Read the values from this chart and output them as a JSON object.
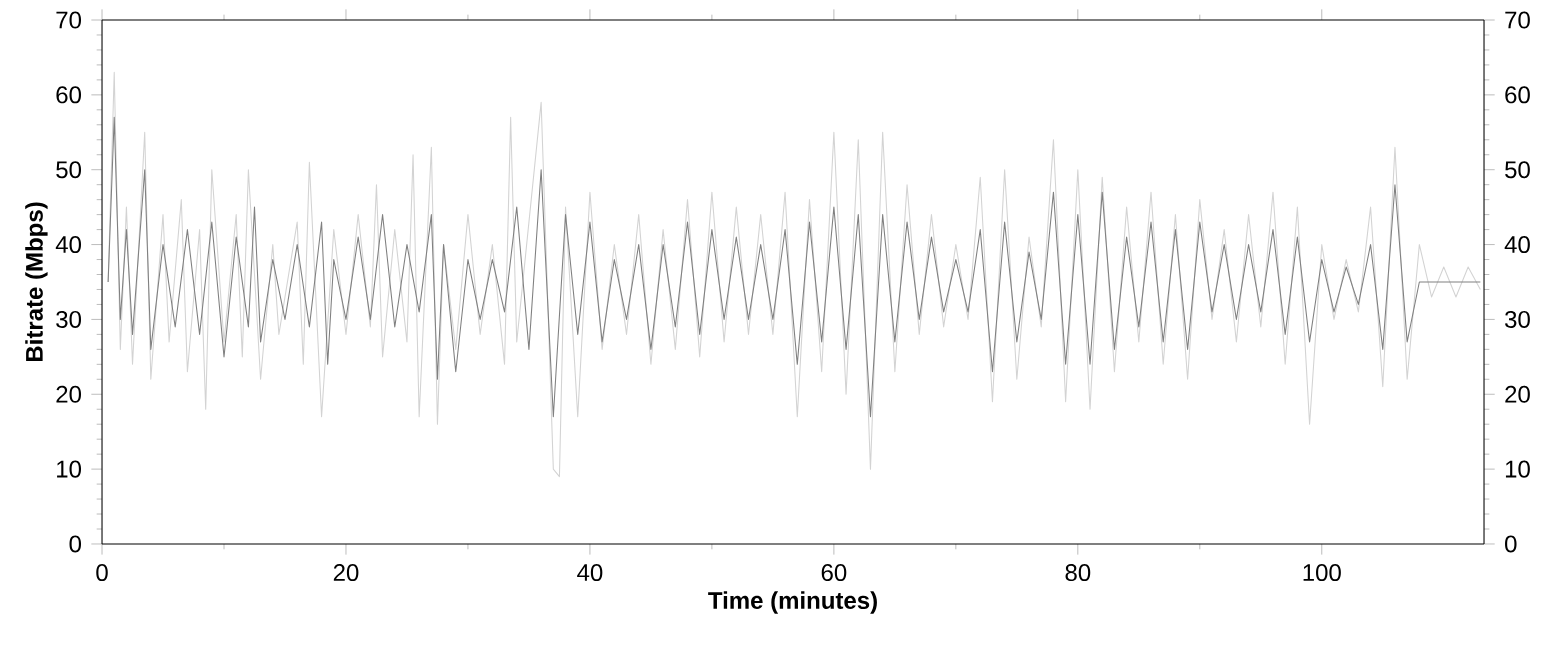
{
  "chart_data": {
    "type": "line",
    "xlabel": "Time (minutes)",
    "ylabel": "Bitrate (Mbps)",
    "xlim": [
      0,
      113.3
    ],
    "xticks": [
      0,
      20,
      40,
      60,
      80,
      100
    ],
    "ylim": [
      0,
      70
    ],
    "yticks": [
      0,
      10,
      20,
      30,
      40,
      50,
      60,
      70
    ],
    "y2lim": [
      0,
      70
    ],
    "y2ticks": [
      0,
      10,
      20,
      30,
      40,
      50,
      60,
      70
    ],
    "grid": false,
    "marker": "none",
    "line_style": "solid",
    "series": [
      {
        "color": "#d3d3d3",
        "x": [
          0.5,
          1,
          1.5,
          2,
          2.5,
          3.5,
          4,
          5,
          5.5,
          6.5,
          7,
          8,
          8.5,
          9,
          10,
          11,
          11.5,
          12,
          13,
          14,
          14.5,
          16,
          16.5,
          17,
          18,
          19,
          20,
          21,
          22,
          22.5,
          23,
          24,
          25,
          25.5,
          26,
          27,
          27.5,
          28,
          29,
          30,
          31,
          32,
          33,
          33.5,
          34,
          36,
          37,
          37.5,
          38,
          39,
          40,
          41,
          42,
          43,
          44,
          45,
          46,
          47,
          48,
          49,
          50,
          51,
          52,
          53,
          54,
          55,
          56,
          57,
          58,
          59,
          60,
          61,
          62,
          63,
          64,
          65,
          66,
          67,
          68,
          69,
          70,
          71,
          72,
          73,
          74,
          75,
          76,
          77,
          78,
          79,
          80,
          81,
          82,
          83,
          84,
          85,
          86,
          87,
          88,
          89,
          90,
          91,
          92,
          93,
          94,
          95,
          96,
          97,
          98,
          99,
          100,
          101,
          102,
          103,
          104,
          105,
          106,
          107,
          108,
          109,
          110,
          111,
          112,
          113
        ],
        "values": [
          35,
          63,
          26,
          45,
          24,
          55,
          22,
          44,
          27,
          46,
          23,
          42,
          18,
          50,
          27,
          44,
          25,
          50,
          22,
          40,
          28,
          43,
          24,
          51,
          17,
          42,
          28,
          44,
          29,
          48,
          25,
          42,
          27,
          52,
          17,
          53,
          16,
          40,
          26,
          44,
          28,
          40,
          24,
          57,
          27,
          59,
          10,
          9,
          45,
          17,
          47,
          26,
          40,
          28,
          44,
          24,
          42,
          26,
          46,
          25,
          47,
          27,
          45,
          28,
          44,
          28,
          47,
          17,
          46,
          23,
          55,
          20,
          54,
          10,
          55,
          23,
          48,
          28,
          44,
          29,
          40,
          30,
          49,
          19,
          50,
          22,
          41,
          29,
          54,
          19,
          50,
          18,
          49,
          23,
          45,
          27,
          47,
          24,
          44,
          22,
          46,
          30,
          42,
          27,
          44,
          29,
          47,
          24,
          45,
          16,
          40,
          30,
          38,
          31,
          45,
          21,
          53,
          22,
          40,
          33,
          37,
          33,
          37,
          34
        ]
      },
      {
        "color": "#808080",
        "x": [
          0.5,
          1,
          1.5,
          2,
          2.5,
          3.5,
          4,
          5,
          6,
          7,
          8,
          9,
          10,
          11,
          12,
          12.5,
          13,
          14,
          15,
          16,
          17,
          18,
          18.5,
          19,
          20,
          21,
          22,
          23,
          24,
          25,
          26,
          27,
          27.5,
          28,
          29,
          30,
          31,
          32,
          33,
          34,
          35,
          36,
          37,
          38,
          39,
          40,
          41,
          42,
          43,
          44,
          45,
          46,
          47,
          48,
          49,
          50,
          51,
          52,
          53,
          54,
          55,
          56,
          57,
          58,
          59,
          60,
          61,
          62,
          63,
          64,
          65,
          66,
          67,
          68,
          69,
          70,
          71,
          72,
          73,
          74,
          75,
          76,
          77,
          78,
          79,
          80,
          81,
          82,
          83,
          84,
          85,
          86,
          87,
          88,
          89,
          90,
          91,
          92,
          93,
          94,
          95,
          96,
          97,
          98,
          99,
          100,
          101,
          102,
          103,
          104,
          105,
          106,
          107,
          108,
          113
        ],
        "values": [
          35,
          57,
          30,
          42,
          28,
          50,
          26,
          40,
          29,
          42,
          28,
          43,
          25,
          41,
          29,
          45,
          27,
          38,
          30,
          40,
          29,
          43,
          24,
          38,
          30,
          41,
          30,
          44,
          29,
          40,
          31,
          44,
          22,
          40,
          23,
          38,
          30,
          38,
          31,
          45,
          26,
          50,
          17,
          44,
          28,
          43,
          27,
          38,
          30,
          40,
          26,
          40,
          29,
          43,
          28,
          42,
          30,
          41,
          30,
          40,
          30,
          42,
          24,
          43,
          27,
          45,
          26,
          44,
          17,
          44,
          27,
          43,
          30,
          41,
          31,
          38,
          31,
          42,
          23,
          43,
          27,
          39,
          30,
          47,
          24,
          44,
          24,
          47,
          26,
          41,
          29,
          43,
          27,
          42,
          26,
          43,
          31,
          40,
          30,
          40,
          31,
          42,
          28,
          41,
          27,
          38,
          31,
          37,
          32,
          40,
          26,
          48,
          27,
          35,
          35
        ]
      }
    ]
  }
}
